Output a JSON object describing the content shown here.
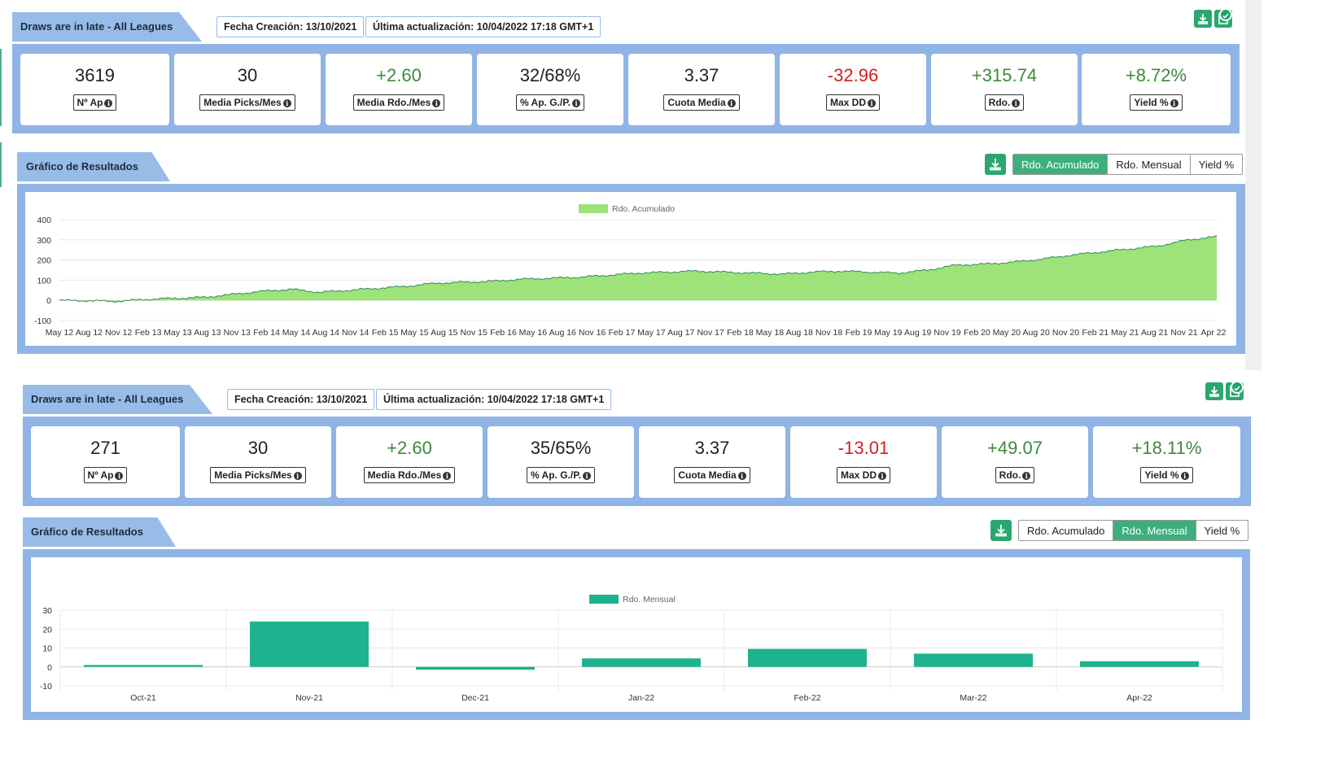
{
  "top": {
    "title": "Draws are in late - All Leagues",
    "created": "Fecha Creación: 13/10/2021",
    "updated": "Última actualización: 10/04/2022 17:18 GMT+1",
    "kpis": [
      {
        "value": "3619",
        "label": "Nº Ap",
        "tone": "neu"
      },
      {
        "value": "30",
        "label": "Media Picks/Mes",
        "tone": "neu"
      },
      {
        "value": "+2.60",
        "label": "Media Rdo./Mes",
        "tone": "pos"
      },
      {
        "value": "32/68%",
        "label": "% Ap. G./P.",
        "tone": "neu"
      },
      {
        "value": "3.37",
        "label": "Cuota Media",
        "tone": "neu"
      },
      {
        "value": "-32.96",
        "label": "Max DD",
        "tone": "neg"
      },
      {
        "value": "+315.74",
        "label": "Rdo.",
        "tone": "pos"
      },
      {
        "value": "+8.72%",
        "label": "Yield %",
        "tone": "pos"
      }
    ],
    "chart_title": "Gráfico de Resultados",
    "buttons": [
      "Rdo. Acumulado",
      "Rdo. Mensual",
      "Yield %"
    ],
    "active_button": 0
  },
  "bottom": {
    "title": "Draws are in late - All Leagues",
    "created": "Fecha Creación: 13/10/2021",
    "updated": "Última actualización: 10/04/2022 17:18 GMT+1",
    "kpis": [
      {
        "value": "271",
        "label": "Nº Ap",
        "tone": "neu"
      },
      {
        "value": "30",
        "label": "Media Picks/Mes",
        "tone": "neu"
      },
      {
        "value": "+2.60",
        "label": "Media Rdo./Mes",
        "tone": "pos"
      },
      {
        "value": "35/65%",
        "label": "% Ap. G./P.",
        "tone": "neu"
      },
      {
        "value": "3.37",
        "label": "Cuota Media",
        "tone": "neu"
      },
      {
        "value": "-13.01",
        "label": "Max DD",
        "tone": "neg"
      },
      {
        "value": "+49.07",
        "label": "Rdo.",
        "tone": "pos"
      },
      {
        "value": "+18.11%",
        "label": "Yield %",
        "tone": "pos"
      }
    ],
    "chart_title": "Gráfico de Resultados",
    "buttons": [
      "Rdo. Acumulado",
      "Rdo. Mensual",
      "Yield %"
    ],
    "active_button": 1
  },
  "colors": {
    "panel_blue": "#8fb4e5",
    "positive": "#3b8a3b",
    "negative": "#d21f1f",
    "area_fill": "#9ee27a",
    "area_line": "#2e8b57",
    "bar_fill": "#1fb28e",
    "button_active": "#3daf7c"
  },
  "chart_data": [
    {
      "type": "area",
      "legend": "Rdo. Acumulado",
      "x_tick_labels": [
        "May 12",
        "Aug 12",
        "Nov 12",
        "Feb 13",
        "May 13",
        "Aug 13",
        "Nov 13",
        "Feb 14",
        "May 14",
        "Aug 14",
        "Nov 14",
        "Feb 15",
        "May 15",
        "Aug 15",
        "Nov 15",
        "Feb 16",
        "May 16",
        "Aug 16",
        "Nov 16",
        "Feb 17",
        "May 17",
        "Aug 17",
        "Nov 17",
        "Feb 18",
        "May 18",
        "Aug 18",
        "Nov 18",
        "Feb 19",
        "May 19",
        "Aug 19",
        "Nov 19",
        "Feb 20",
        "May 20",
        "Aug 20",
        "Nov 20",
        "Feb 21",
        "May 21",
        "Aug 21",
        "Nov 21",
        "Apr 22"
      ],
      "y_ticks": [
        400,
        300,
        200,
        100,
        0,
        -100
      ],
      "ylim": [
        -100,
        400
      ],
      "grid": true,
      "series": [
        {
          "name": "Rdo. Acumulado",
          "values": [
            0,
            -2,
            -5,
            5,
            10,
            15,
            30,
            45,
            55,
            40,
            50,
            60,
            70,
            85,
            90,
            95,
            105,
            110,
            115,
            125,
            135,
            140,
            145,
            140,
            135,
            130,
            140,
            145,
            140,
            135,
            150,
            175,
            180,
            190,
            205,
            225,
            240,
            255,
            270,
            300,
            316
          ]
        }
      ]
    },
    {
      "type": "bar",
      "legend": "Rdo. Mensual",
      "categories": [
        "Oct-21",
        "Nov-21",
        "Dec-21",
        "Jan-22",
        "Feb-22",
        "Mar-22",
        "Apr-22"
      ],
      "values": [
        1,
        24,
        -1.5,
        4.5,
        9.5,
        7,
        3
      ],
      "y_ticks": [
        30,
        20,
        10,
        0,
        -10
      ],
      "ylim": [
        -10,
        30
      ],
      "grid": true
    }
  ]
}
